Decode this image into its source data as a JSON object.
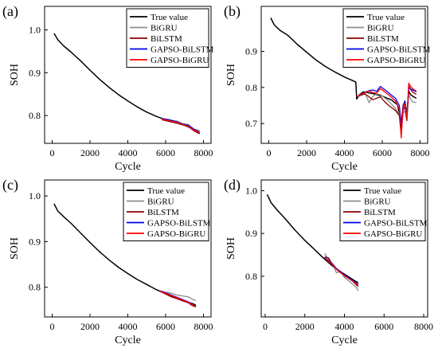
{
  "chart_data": [
    {
      "type": "line",
      "panel_label": "(a)",
      "xlabel": "Cycle",
      "ylabel": "SOH",
      "xlim": [
        -400,
        8400
      ],
      "ylim": [
        0.735,
        1.055
      ],
      "xticks": [
        0,
        2000,
        4000,
        6000,
        8000
      ],
      "xtick_labels": [
        "0",
        "2000",
        "4000",
        "6000",
        "8000"
      ],
      "yticks": [
        0.8,
        0.9,
        1.0
      ],
      "ytick_labels": [
        "0.8",
        "0.9",
        "1.0"
      ],
      "legend_position": "top-right",
      "series": [
        {
          "name": "True value",
          "color": "#000000",
          "x": [
            100,
            300,
            600,
            1000,
            1500,
            2000,
            2500,
            3000,
            3500,
            4000,
            4500,
            5000,
            5500,
            6000,
            6500,
            7000,
            7500,
            7800
          ],
          "y": [
            0.992,
            0.977,
            0.963,
            0.948,
            0.928,
            0.906,
            0.885,
            0.866,
            0.849,
            0.834,
            0.82,
            0.808,
            0.798,
            0.79,
            0.784,
            0.777,
            0.768,
            0.76
          ]
        },
        {
          "name": "BiGRU",
          "color": "#8c8c8c",
          "x": [
            5800,
            6200,
            6600,
            6900,
            7200,
            7500,
            7800
          ],
          "y": [
            0.791,
            0.789,
            0.787,
            0.781,
            0.779,
            0.768,
            0.765
          ]
        },
        {
          "name": "BiLSTM",
          "color": "#8b0000",
          "x": [
            5800,
            6200,
            6600,
            6900,
            7200,
            7500,
            7800
          ],
          "y": [
            0.79,
            0.786,
            0.782,
            0.778,
            0.774,
            0.764,
            0.757
          ]
        },
        {
          "name": "GAPSO-BiLSTM",
          "color": "#0000ee",
          "x": [
            5800,
            6200,
            6600,
            6900,
            7200,
            7500,
            7800
          ],
          "y": [
            0.793,
            0.79,
            0.785,
            0.78,
            0.777,
            0.768,
            0.761
          ]
        },
        {
          "name": "GAPSO-BiGRU",
          "color": "#ff0000",
          "x": [
            5800,
            6200,
            6600,
            6900,
            7200,
            7500,
            7800
          ],
          "y": [
            0.792,
            0.788,
            0.784,
            0.779,
            0.775,
            0.766,
            0.76
          ]
        }
      ]
    },
    {
      "type": "line",
      "panel_label": "(b)",
      "xlabel": "Cycle",
      "ylabel": "SOH",
      "xlim": [
        -400,
        8400
      ],
      "ylim": [
        0.645,
        1.025
      ],
      "xticks": [
        0,
        2000,
        4000,
        6000,
        8000
      ],
      "xtick_labels": [
        "0",
        "2000",
        "4000",
        "6000",
        "8000"
      ],
      "yticks": [
        0.7,
        0.8,
        0.9
      ],
      "ytick_labels": [
        "0.7",
        "0.8",
        "0.9"
      ],
      "legend_position": "top-right",
      "series": [
        {
          "name": "True value",
          "color": "#000000",
          "x": [
            100,
            300,
            600,
            1000,
            1500,
            2000,
            2500,
            3000,
            3500,
            4000,
            4400,
            4600,
            4650,
            4800,
            5000,
            5500,
            6000,
            6500,
            6800,
            6900,
            7000,
            7100,
            7200,
            7300,
            7400,
            7500,
            7600,
            7800
          ],
          "y": [
            0.993,
            0.973,
            0.958,
            0.945,
            0.92,
            0.898,
            0.876,
            0.858,
            0.843,
            0.829,
            0.82,
            0.815,
            0.768,
            0.78,
            0.788,
            0.783,
            0.776,
            0.765,
            0.752,
            0.73,
            0.68,
            0.745,
            0.76,
            0.725,
            0.79,
            0.78,
            0.776,
            0.77
          ]
        },
        {
          "name": "BiGRU",
          "color": "#8c8c8c",
          "x": [
            4700,
            4900,
            5100,
            5300,
            5500,
            5700,
            5900,
            6100,
            6300,
            6500,
            6700,
            6900,
            7000,
            7100,
            7200,
            7300,
            7400,
            7500,
            7600,
            7800
          ],
          "y": [
            0.775,
            0.778,
            0.783,
            0.758,
            0.775,
            0.782,
            0.78,
            0.772,
            0.764,
            0.753,
            0.742,
            0.725,
            0.705,
            0.728,
            0.735,
            0.71,
            0.78,
            0.768,
            0.76,
            0.758
          ]
        },
        {
          "name": "BiLSTM",
          "color": "#8b0000",
          "x": [
            4700,
            4900,
            5100,
            5300,
            5500,
            5700,
            5900,
            6100,
            6300,
            6500,
            6700,
            6900,
            7000,
            7100,
            7200,
            7300,
            7400,
            7500,
            7600,
            7800
          ],
          "y": [
            0.775,
            0.78,
            0.782,
            0.774,
            0.766,
            0.77,
            0.774,
            0.762,
            0.752,
            0.744,
            0.736,
            0.722,
            0.668,
            0.735,
            0.748,
            0.708,
            0.805,
            0.795,
            0.787,
            0.781
          ]
        },
        {
          "name": "GAPSO-BiLSTM",
          "color": "#0000ee",
          "x": [
            4700,
            4900,
            5100,
            5300,
            5500,
            5700,
            5900,
            6100,
            6300,
            6500,
            6700,
            6900,
            7000,
            7100,
            7200,
            7300,
            7400,
            7500,
            7600,
            7800
          ],
          "y": [
            0.776,
            0.781,
            0.787,
            0.791,
            0.793,
            0.789,
            0.803,
            0.795,
            0.787,
            0.778,
            0.77,
            0.75,
            0.7,
            0.75,
            0.763,
            0.72,
            0.8,
            0.796,
            0.793,
            0.788
          ]
        },
        {
          "name": "GAPSO-BiGRU",
          "color": "#ff0000",
          "x": [
            4700,
            4900,
            5100,
            5300,
            5500,
            5700,
            5900,
            6100,
            6300,
            6500,
            6700,
            6900,
            7000,
            7100,
            7200,
            7300,
            7400,
            7500,
            7600,
            7800
          ],
          "y": [
            0.775,
            0.782,
            0.786,
            0.79,
            0.786,
            0.784,
            0.797,
            0.789,
            0.781,
            0.772,
            0.763,
            0.74,
            0.66,
            0.745,
            0.756,
            0.715,
            0.812,
            0.803,
            0.797,
            0.79
          ]
        }
      ]
    },
    {
      "type": "line",
      "panel_label": "(c)",
      "xlabel": "Cycle",
      "ylabel": "SOH",
      "xlim": [
        -400,
        8400
      ],
      "ylim": [
        0.735,
        1.035
      ],
      "xticks": [
        0,
        2000,
        4000,
        6000,
        8000
      ],
      "xtick_labels": [
        "0",
        "2000",
        "4000",
        "6000",
        "8000"
      ],
      "yticks": [
        0.8,
        0.9,
        1.0
      ],
      "ytick_labels": [
        "0.8",
        "0.9",
        "1.0"
      ],
      "legend_position": "top-right",
      "series": [
        {
          "name": "True value",
          "color": "#000000",
          "x": [
            100,
            300,
            600,
            1000,
            1500,
            2000,
            2500,
            3000,
            3500,
            4000,
            4500,
            5000,
            5500,
            6000,
            6500,
            7000,
            7500,
            7600
          ],
          "y": [
            0.983,
            0.967,
            0.955,
            0.94,
            0.919,
            0.898,
            0.878,
            0.86,
            0.844,
            0.83,
            0.817,
            0.806,
            0.795,
            0.786,
            0.777,
            0.77,
            0.763,
            0.76
          ]
        },
        {
          "name": "BiGRU",
          "color": "#8c8c8c",
          "x": [
            5700,
            6000,
            6300,
            6600,
            6900,
            7200,
            7400,
            7600
          ],
          "y": [
            0.792,
            0.789,
            0.787,
            0.783,
            0.781,
            0.779,
            0.774,
            0.771
          ]
        },
        {
          "name": "BiLSTM",
          "color": "#8b0000",
          "x": [
            5700,
            6000,
            6300,
            6600,
            6900,
            7200,
            7400,
            7600
          ],
          "y": [
            0.791,
            0.785,
            0.779,
            0.775,
            0.77,
            0.766,
            0.76,
            0.757
          ]
        },
        {
          "name": "GAPSO-BiLSTM",
          "color": "#0000ee",
          "x": [
            5700,
            6000,
            6300,
            6600,
            6900,
            7200,
            7400,
            7600
          ],
          "y": [
            0.792,
            0.788,
            0.783,
            0.778,
            0.773,
            0.768,
            0.763,
            0.758
          ]
        },
        {
          "name": "GAPSO-BiGRU",
          "color": "#ff0000",
          "x": [
            5700,
            6000,
            6300,
            6600,
            6900,
            7200,
            7400,
            7600
          ],
          "y": [
            0.791,
            0.787,
            0.782,
            0.777,
            0.772,
            0.767,
            0.762,
            0.758
          ]
        }
      ]
    },
    {
      "type": "line",
      "panel_label": "(d)",
      "xlabel": "Cycle",
      "ylabel": "SOH",
      "xlim": [
        -200,
        8200
      ],
      "ylim": [
        0.705,
        1.025
      ],
      "xticks": [
        0,
        2000,
        4000,
        6000,
        8000
      ],
      "xtick_labels": [
        "0",
        "2000",
        "4000",
        "6000",
        "8000"
      ],
      "yticks": [
        0.8,
        0.9,
        1.0
      ],
      "ytick_labels": [
        "0.8",
        "0.9",
        "1.0"
      ],
      "legend_position": "top-right",
      "series": [
        {
          "name": "True value",
          "color": "#000000",
          "x": [
            100,
            300,
            600,
            1000,
            1500,
            2000,
            2500,
            3000,
            3500,
            4000,
            4500,
            4700
          ],
          "y": [
            0.991,
            0.972,
            0.955,
            0.935,
            0.908,
            0.884,
            0.862,
            0.84,
            0.82,
            0.805,
            0.79,
            0.785
          ]
        },
        {
          "name": "BiGRU",
          "color": "#8c8c8c",
          "x": [
            3000,
            3200,
            3400,
            3600,
            3800,
            4000,
            4200,
            4400,
            4600,
            4700
          ],
          "y": [
            0.853,
            0.84,
            0.829,
            0.808,
            0.812,
            0.797,
            0.79,
            0.782,
            0.774,
            0.766
          ]
        },
        {
          "name": "BiLSTM",
          "color": "#8b0000",
          "x": [
            3000,
            3200,
            3400,
            3600,
            3800,
            4000,
            4200,
            4400,
            4600,
            4700
          ],
          "y": [
            0.845,
            0.843,
            0.826,
            0.817,
            0.808,
            0.804,
            0.796,
            0.789,
            0.78,
            0.776
          ]
        },
        {
          "name": "GAPSO-BiLSTM",
          "color": "#0000ee",
          "x": [
            3000,
            3200,
            3400,
            3600,
            3800,
            4000,
            4200,
            4400,
            4600,
            4700
          ],
          "y": [
            0.844,
            0.837,
            0.829,
            0.818,
            0.811,
            0.803,
            0.797,
            0.791,
            0.784,
            0.781
          ]
        },
        {
          "name": "GAPSO-BiGRU",
          "color": "#ff0000",
          "x": [
            3000,
            3200,
            3400,
            3600,
            3800,
            4000,
            4200,
            4400,
            4600,
            4700
          ],
          "y": [
            0.842,
            0.836,
            0.827,
            0.816,
            0.809,
            0.801,
            0.795,
            0.789,
            0.782,
            0.779
          ]
        }
      ]
    }
  ]
}
